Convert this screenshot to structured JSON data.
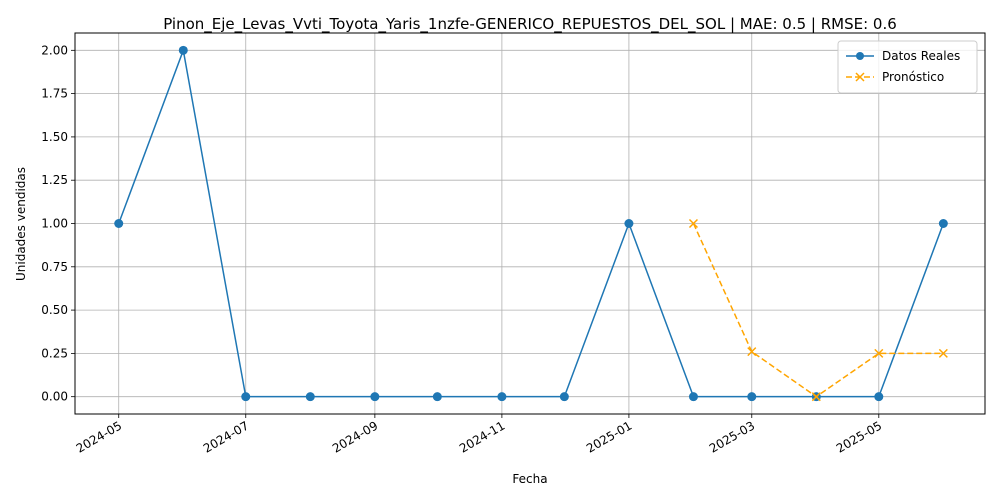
{
  "chart_data": {
    "type": "line",
    "title": "Pinon_Eje_Levas_Vvti_Toyota_Yaris_1nzfe-GENERICO_REPUESTOS_DEL_SOL | MAE: 0.5 | RMSE: 0.6",
    "xlabel": "Fecha",
    "ylabel": "Unidades vendidas",
    "x_ticks": [
      "2024-05",
      "2024-07",
      "2024-09",
      "2024-11",
      "2025-01",
      "2025-03",
      "2025-05"
    ],
    "y_ticks": [
      "0.00",
      "0.25",
      "0.50",
      "0.75",
      "1.00",
      "1.25",
      "1.50",
      "1.75",
      "2.00"
    ],
    "xlim": [
      "2024-04-10",
      "2025-06-21"
    ],
    "ylim": [
      -0.1,
      2.1
    ],
    "grid": true,
    "legend_position": "top-right",
    "series": [
      {
        "name": "Datos Reales",
        "color": "#1f77b4",
        "marker": "circle",
        "style": "solid",
        "x": [
          "2024-05-01",
          "2024-06-01",
          "2024-07-01",
          "2024-08-01",
          "2024-09-01",
          "2024-10-01",
          "2024-11-01",
          "2024-12-01",
          "2025-01-01",
          "2025-02-01",
          "2025-03-01",
          "2025-04-01",
          "2025-05-01",
          "2025-06-01"
        ],
        "values": [
          1,
          2,
          0,
          0,
          0,
          0,
          0,
          0,
          1,
          0,
          0,
          0,
          0,
          1
        ]
      },
      {
        "name": "Pronóstico",
        "color": "#ffa500",
        "marker": "x",
        "style": "dashed",
        "x": [
          "2025-02-01",
          "2025-03-01",
          "2025-04-01",
          "2025-05-01",
          "2025-06-01"
        ],
        "values": [
          1.0,
          0.26,
          0.0,
          0.25,
          0.25
        ]
      }
    ]
  }
}
